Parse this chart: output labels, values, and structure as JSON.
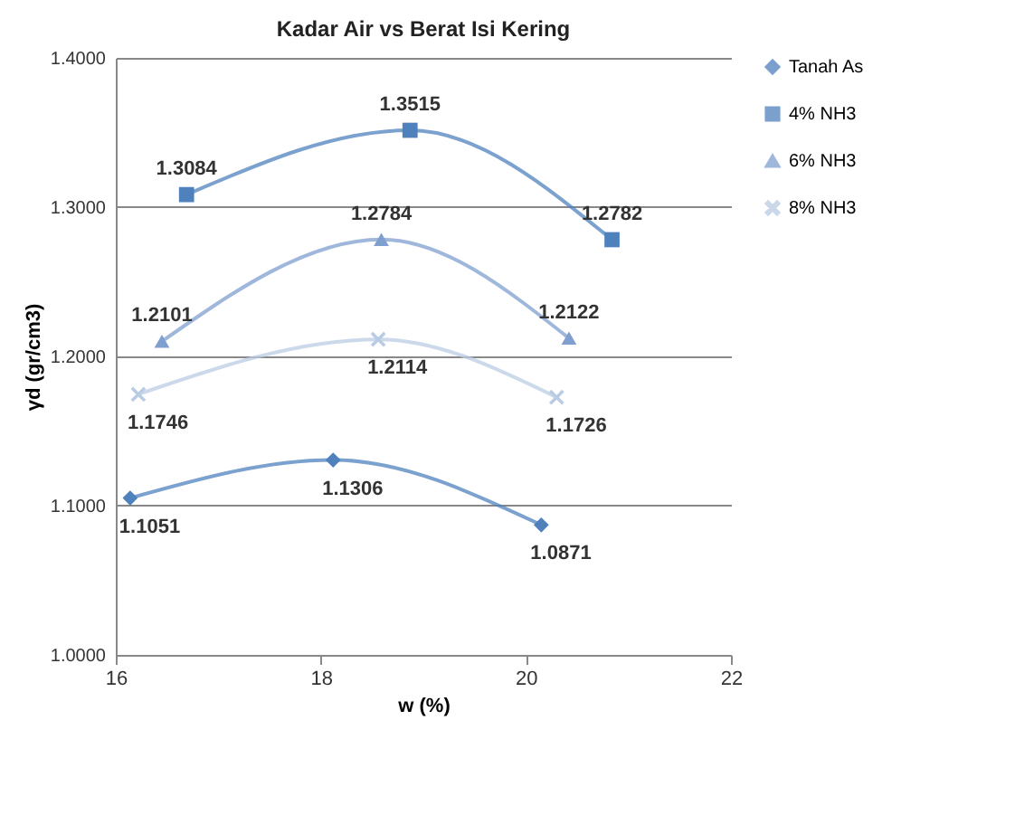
{
  "chart_data": {
    "type": "line",
    "title": "Kadar Air vs Berat Isi Kering",
    "xlabel": "w (%)",
    "ylabel": "γd (gr/cm3)",
    "xlim": [
      16,
      22
    ],
    "xticks": [
      16,
      18,
      20,
      22
    ],
    "ylim": [
      1.0,
      1.4
    ],
    "yticks": [
      {
        "value": 1.0,
        "label": "1.0000"
      },
      {
        "value": 1.1,
        "label": "1.1000"
      },
      {
        "value": 1.2,
        "label": "1.2000"
      },
      {
        "value": 1.3,
        "label": "1.3000"
      },
      {
        "value": 1.4,
        "label": "1.4000"
      }
    ],
    "grid": "y",
    "legend": "right",
    "data_labels": true,
    "line_style": "solid",
    "series": [
      {
        "name": "Tanah As",
        "color": "#4f81bd",
        "marker": "diamond",
        "x": [
          16.14,
          18.12,
          20.15
        ],
        "values": [
          1.1051,
          1.1306,
          1.0871
        ]
      },
      {
        "name": "4% NH3",
        "color": "#4f81bd",
        "marker": "square",
        "x": [
          16.69,
          18.87,
          20.84
        ],
        "values": [
          1.3084,
          1.3515,
          1.2782
        ]
      },
      {
        "name": "6% NH3",
        "color": "#7f9fcf",
        "marker": "triangle",
        "x": [
          16.45,
          18.59,
          20.42
        ],
        "values": [
          1.2101,
          1.2784,
          1.2122
        ]
      },
      {
        "name": "8% NH3",
        "color": "#b9cce4",
        "marker": "cross",
        "x": [
          16.22,
          18.56,
          20.3
        ],
        "values": [
          1.1746,
          1.2114,
          1.1726
        ]
      }
    ]
  }
}
